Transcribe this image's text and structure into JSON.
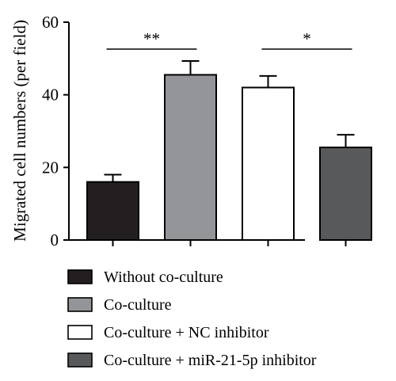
{
  "chart_data": {
    "type": "bar",
    "categories": [
      "Without co-culture",
      "Co-culture",
      "Co-culture + NC inhibitor",
      "Co-culture + miR-21-5p inhibitor"
    ],
    "values": [
      16,
      45.5,
      42,
      25.5
    ],
    "errors": [
      2,
      3.8,
      3.2,
      3.5
    ],
    "colors": [
      "#231f20",
      "#939598",
      "#ffffff",
      "#58595b"
    ],
    "ylabel": "Migrated cell numbers (per field)",
    "ylim": [
      0,
      60
    ],
    "yticks": [
      0,
      20,
      40,
      60
    ],
    "significance": [
      {
        "groups": [
          0,
          1
        ],
        "label": "**"
      },
      {
        "groups": [
          2,
          3
        ],
        "label": "*"
      }
    ],
    "legend": {
      "position": "bottom",
      "entries": [
        "Without co-culture",
        "Co-culture",
        "Co-culture + NC inhibitor",
        "Co-culture + miR-21-5p inhibitor"
      ]
    }
  }
}
